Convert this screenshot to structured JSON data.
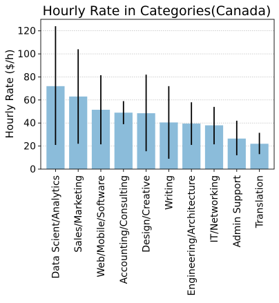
{
  "chart_data": {
    "type": "bar",
    "title": "Hourly Rate in Categories(Canada)",
    "xlabel": "",
    "ylabel": "Hourly Rate ($/h)",
    "ylim": [
      0,
      130
    ],
    "yticks": [
      0,
      20,
      40,
      60,
      80,
      100,
      120
    ],
    "grid": "horizontal dotted",
    "categories": [
      "Data Scient/Analytics",
      "Sales/Marketing",
      "Web/Mobile/Software",
      "Accounting/Consulting",
      "Design/Creative",
      "Writing",
      "Engineering/Architecture",
      "IT/Networking",
      "Admin Support",
      "Translation"
    ],
    "values": [
      72,
      63,
      51.5,
      49,
      48.5,
      40.5,
      39.5,
      38,
      26.5,
      22
    ],
    "errors": [
      [
        21,
        124
      ],
      [
        22,
        104
      ],
      [
        21.5,
        81.5
      ],
      [
        39,
        59
      ],
      [
        15.5,
        82
      ],
      [
        9,
        72
      ],
      [
        21,
        58
      ],
      [
        21.5,
        54
      ],
      [
        12,
        42
      ],
      [
        13,
        31.5
      ]
    ],
    "colors": {
      "bar": "#8bbcda",
      "error_bar": "#000000",
      "grid": "#b0b0b0",
      "axis": "#000000"
    }
  }
}
